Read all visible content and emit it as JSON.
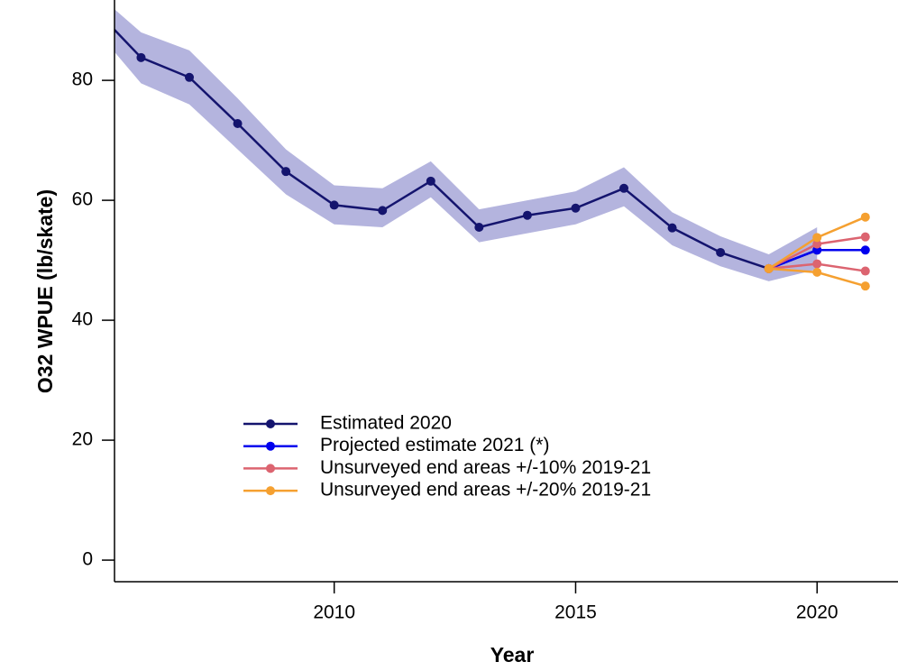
{
  "chart_data": {
    "type": "line",
    "xlabel": "Year",
    "ylabel": "O32 WPUE (lb/skate)",
    "x": [
      2005,
      2006,
      2007,
      2008,
      2009,
      2010,
      2011,
      2012,
      2013,
      2014,
      2015,
      2016,
      2017,
      2018,
      2019,
      2020,
      2021
    ],
    "xlim": [
      2005.45,
      2021.62
    ],
    "xticks": [
      2010,
      2015,
      2020
    ],
    "ylim": [
      -3.6,
      93.4
    ],
    "yticks": [
      0,
      20,
      40,
      60,
      80
    ],
    "band": {
      "color": "#b4b4de",
      "upper": [
        95,
        88,
        85,
        77,
        68.5,
        62.5,
        62,
        66.5,
        58.5,
        60,
        61.5,
        65.5,
        58,
        54,
        51,
        55.5,
        null
      ],
      "lower": [
        89,
        79.5,
        76,
        68.5,
        61,
        56,
        55.5,
        60.5,
        53,
        54.5,
        56,
        59,
        52.5,
        49,
        46.5,
        48.5,
        null
      ]
    },
    "series": [
      {
        "name": "Estimated 2020",
        "color": "#14146e",
        "values": [
          92.2,
          83.8,
          80.5,
          72.8,
          64.8,
          59.2,
          58.3,
          63.2,
          55.5,
          57.5,
          58.7,
          62.0,
          55.4,
          51.3,
          48.6,
          51.7,
          null
        ]
      },
      {
        "name": "Projected estimate 2021 (*)",
        "color": "#0000ee",
        "values": [
          null,
          null,
          null,
          null,
          null,
          null,
          null,
          null,
          null,
          null,
          null,
          null,
          null,
          null,
          48.6,
          51.7,
          51.7
        ]
      },
      {
        "name": "Unsurveyed end areas +/-10% 2019-21",
        "color": "#dc6470",
        "values_high": [
          null,
          null,
          null,
          null,
          null,
          null,
          null,
          null,
          null,
          null,
          null,
          null,
          null,
          null,
          48.6,
          52.7,
          53.9
        ],
        "values_low": [
          null,
          null,
          null,
          null,
          null,
          null,
          null,
          null,
          null,
          null,
          null,
          null,
          null,
          null,
          48.6,
          49.4,
          48.2
        ]
      },
      {
        "name": "Unsurveyed end areas +/-20% 2019-21",
        "color": "#f5a030",
        "values_high": [
          null,
          null,
          null,
          null,
          null,
          null,
          null,
          null,
          null,
          null,
          null,
          null,
          null,
          null,
          48.6,
          53.8,
          57.2
        ],
        "values_low": [
          null,
          null,
          null,
          null,
          null,
          null,
          null,
          null,
          null,
          null,
          null,
          null,
          null,
          null,
          48.6,
          48.0,
          45.7
        ]
      }
    ]
  }
}
